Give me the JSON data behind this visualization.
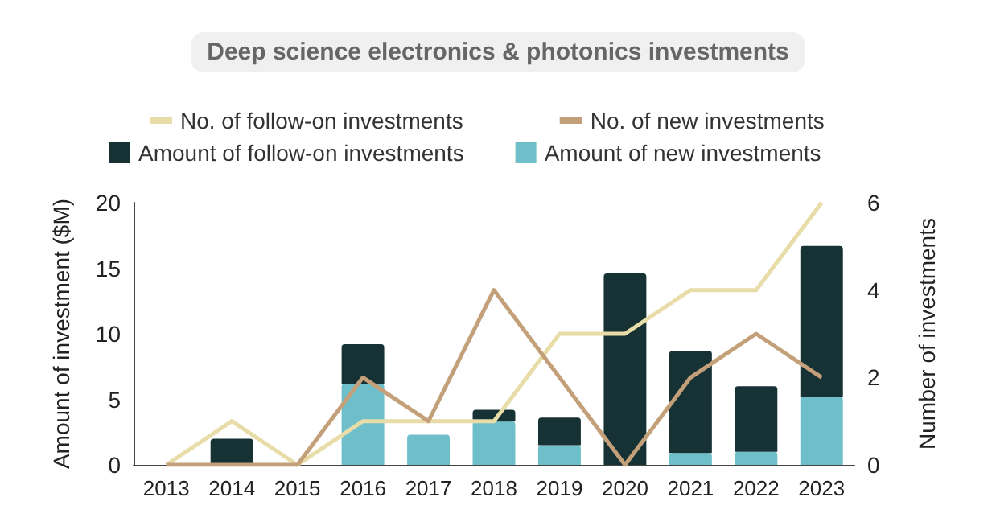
{
  "chart_data": {
    "type": "bar",
    "title": "Deep science electronics & photonics investments",
    "ylabel": "Amount of investment ($M)",
    "y2label": "Number of investments",
    "categories": [
      "2013",
      "2014",
      "2015",
      "2016",
      "2017",
      "2018",
      "2019",
      "2020",
      "2021",
      "2022",
      "2023"
    ],
    "stacked": true,
    "legend": "top",
    "grid": false,
    "ylim": [
      0,
      20
    ],
    "yticks": [
      0,
      5,
      10,
      15,
      20
    ],
    "y2lim": [
      0,
      6
    ],
    "y2ticks": [
      0,
      2,
      4,
      6
    ],
    "series": [
      {
        "name": "Amount of new investments",
        "color": "#6fbfcb",
        "values": [
          0,
          0,
          0,
          6.2,
          2.3,
          3.3,
          1.5,
          0,
          0.9,
          1.0,
          5.2
        ]
      },
      {
        "name": "Amount of follow-on investments",
        "color": "#173234",
        "values": [
          0,
          2.0,
          0,
          3.0,
          0,
          0.9,
          2.1,
          14.6,
          7.8,
          5.0,
          11.5
        ]
      },
      {
        "name": "No. of follow-on investments",
        "type": "line",
        "axis": "y2",
        "color": "#e8dca8",
        "values": [
          0,
          1,
          0,
          1,
          1,
          1,
          3,
          3,
          4,
          4,
          6
        ]
      },
      {
        "name": "No. of new investments",
        "type": "line",
        "axis": "y2",
        "color": "#c4a07a",
        "values": [
          0,
          0,
          0,
          2,
          1,
          4,
          2,
          0,
          2,
          3,
          2
        ]
      }
    ]
  }
}
